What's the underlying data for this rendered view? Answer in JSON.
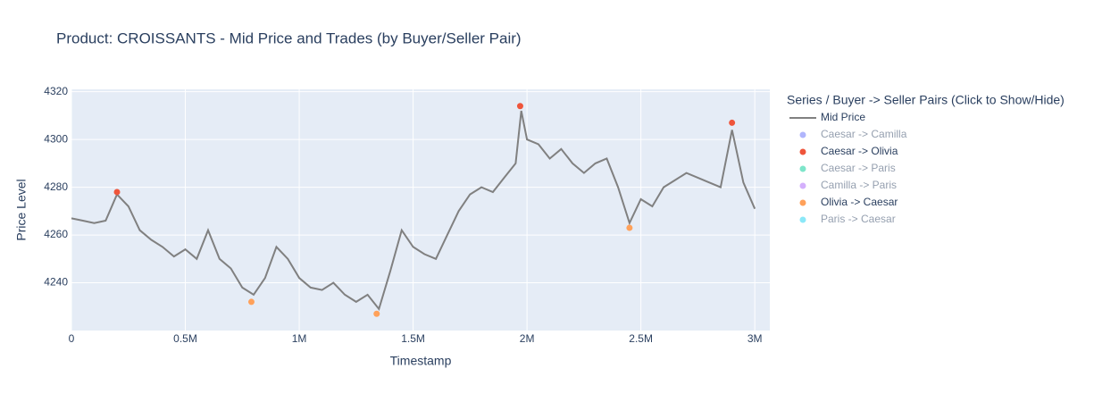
{
  "chart_data": {
    "type": "line",
    "title": "Product: CROISSANTS - Mid Price and Trades (by Buyer/Seller Pair)",
    "x_label": "Timestamp",
    "y_label": "Price Level",
    "legend_title": "Series / Buyer -> Seller Pairs (Click to Show/Hide)",
    "legend_position": "right",
    "grid": true,
    "background": "#e5ecf6",
    "xlim": [
      0,
      3066000
    ],
    "ylim": [
      4220,
      4321
    ],
    "xticks": [
      0,
      {
        "value": 500000,
        "label": "0.5M"
      },
      {
        "value": 1000000,
        "label": "1M"
      },
      {
        "value": 1500000,
        "label": "1.5M"
      },
      {
        "value": 2000000,
        "label": "2M"
      },
      {
        "value": 2500000,
        "label": "2.5M"
      },
      {
        "value": 3000000,
        "label": "3M"
      }
    ],
    "yticks": [
      4240,
      4260,
      4280,
      4300,
      4320
    ],
    "series": [
      {
        "name": "Mid Price",
        "color": "#808080",
        "mode": "lines",
        "visible": true,
        "x": [
          0,
          50000,
          100000,
          150000,
          200000,
          250000,
          300000,
          350000,
          400000,
          450000,
          500000,
          550000,
          600000,
          650000,
          700000,
          750000,
          800000,
          850000,
          900000,
          950000,
          1000000,
          1050000,
          1100000,
          1150000,
          1200000,
          1250000,
          1300000,
          1350000,
          1400000,
          1450000,
          1500000,
          1550000,
          1600000,
          1650000,
          1700000,
          1750000,
          1800000,
          1850000,
          1900000,
          1950000,
          1975000,
          2000000,
          2050000,
          2100000,
          2150000,
          2200000,
          2250000,
          2300000,
          2350000,
          2400000,
          2450000,
          2500000,
          2550000,
          2600000,
          2650000,
          2700000,
          2750000,
          2800000,
          2850000,
          2900000,
          2950000,
          3000000
        ],
        "values": [
          4267,
          4266,
          4265,
          4266,
          4277,
          4272,
          4262,
          4258,
          4255,
          4251,
          4254,
          4250,
          4262,
          4250,
          4246,
          4238,
          4235,
          4242,
          4255,
          4250,
          4242,
          4238,
          4237,
          4240,
          4235,
          4232,
          4235,
          4229,
          4245,
          4262,
          4255,
          4252,
          4250,
          4260,
          4270,
          4277,
          4280,
          4278,
          4284,
          4290,
          4312,
          4300,
          4298,
          4292,
          4296,
          4290,
          4286,
          4290,
          4292,
          4280,
          4265,
          4275,
          4272,
          4280,
          4283,
          4286,
          4284,
          4282,
          4280,
          4304,
          4282,
          4271
        ]
      },
      {
        "name": "Caesar -> Camilla",
        "color": "#636efa",
        "mode": "markers",
        "visible": "legendonly",
        "x": [],
        "values": []
      },
      {
        "name": "Caesar -> Olivia",
        "color": "#ef553b",
        "mode": "markers",
        "visible": true,
        "x": [
          200000,
          1970000,
          2900000
        ],
        "values": [
          4278,
          4314,
          4307
        ]
      },
      {
        "name": "Caesar -> Paris",
        "color": "#00cc96",
        "mode": "markers",
        "visible": "legendonly",
        "x": [],
        "values": []
      },
      {
        "name": "Camilla -> Paris",
        "color": "#ab63fa",
        "mode": "markers",
        "visible": "legendonly",
        "x": [],
        "values": []
      },
      {
        "name": "Olivia -> Caesar",
        "color": "#ffa15a",
        "mode": "markers",
        "visible": true,
        "x": [
          790000,
          1340000,
          2450000
        ],
        "values": [
          4232,
          4227,
          4263
        ]
      },
      {
        "name": "Paris -> Caesar",
        "color": "#19d3f3",
        "mode": "markers",
        "visible": "legendonly",
        "x": [],
        "values": []
      }
    ]
  }
}
